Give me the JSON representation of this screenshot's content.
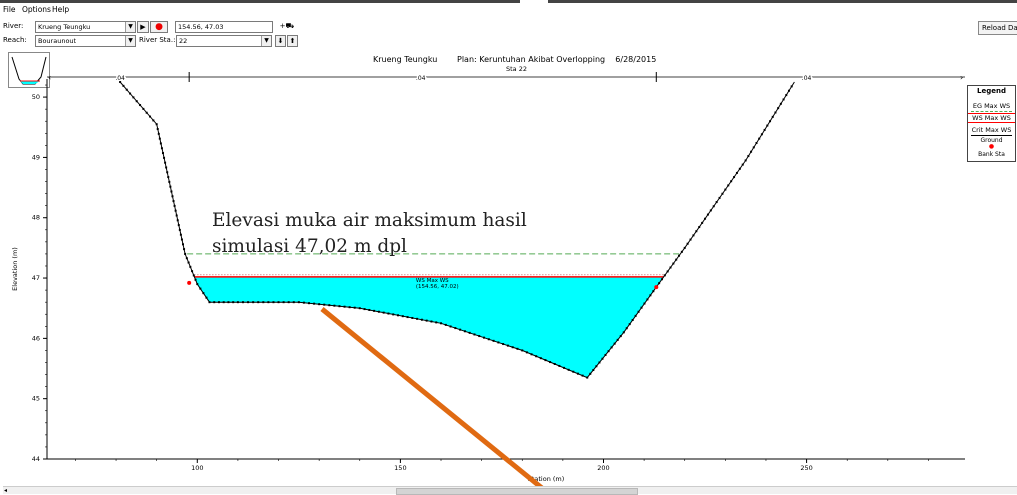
{
  "menu": [
    "File",
    "Options",
    "Help"
  ],
  "toolbar": {
    "river_label": "River:",
    "river_value": "Krueng Teungku",
    "reach_label": "Reach:",
    "reach_value": "Bouraunout",
    "river_sta_label": "River Sta.:",
    "river_sta_value": "22",
    "coordinate": "154.56, 47.03",
    "reload_label": "Reload Da"
  },
  "chart_data": {
    "type": "cross-section",
    "title_river": "Krueng Teungku",
    "title_plan": "Plan: Keruntuhan Akibat Overlopping    6/28/2015",
    "subtitle": "Sta 22",
    "xlabel": "Station (m)",
    "ylabel": "Elevation (m)",
    "xlim": [
      63,
      289
    ],
    "ylim": [
      44.0,
      50.3
    ],
    "xticks": [
      100,
      150,
      200,
      250
    ],
    "yticks": [
      44,
      45,
      46,
      47,
      48,
      49,
      50
    ],
    "manning_labels": [
      {
        "x": 81,
        "text": ".04"
      },
      {
        "x": 155,
        "text": ".04"
      },
      {
        "x": 250,
        "text": ".04"
      }
    ],
    "bank_stations": [
      98,
      213
    ],
    "ground": [
      [
        81,
        50.25
      ],
      [
        90,
        49.55
      ],
      [
        97,
        47.4
      ],
      [
        100,
        46.9
      ],
      [
        103,
        46.6
      ],
      [
        110,
        46.6
      ],
      [
        125,
        46.6
      ],
      [
        140,
        46.5
      ],
      [
        160,
        46.25
      ],
      [
        180,
        45.8
      ],
      [
        196,
        45.35
      ],
      [
        205,
        46.1
      ],
      [
        213,
        46.85
      ],
      [
        220,
        47.5
      ],
      [
        235,
        48.95
      ],
      [
        247,
        50.25
      ]
    ],
    "ws_max": 47.02,
    "eg_max": 47.4,
    "ws_label": "WS Max WS",
    "ws_point": "(154.56, 47.02)",
    "colors": {
      "water": "#00ffff",
      "ws_line": "#ff0000",
      "eg_line": "#55aa55",
      "ground": "#000000",
      "bank": "#ff0000",
      "arrow": "#e06a12"
    }
  },
  "legend": {
    "title": "Legend",
    "items": [
      "EG Max WS",
      "WS Max WS",
      "Crit Max WS",
      "Ground",
      "Bank Sta"
    ]
  },
  "annotation": {
    "line1": "Elevasi  muka  air  maksimum  hasil",
    "line2": "simulasi  47,02 m dpl"
  }
}
